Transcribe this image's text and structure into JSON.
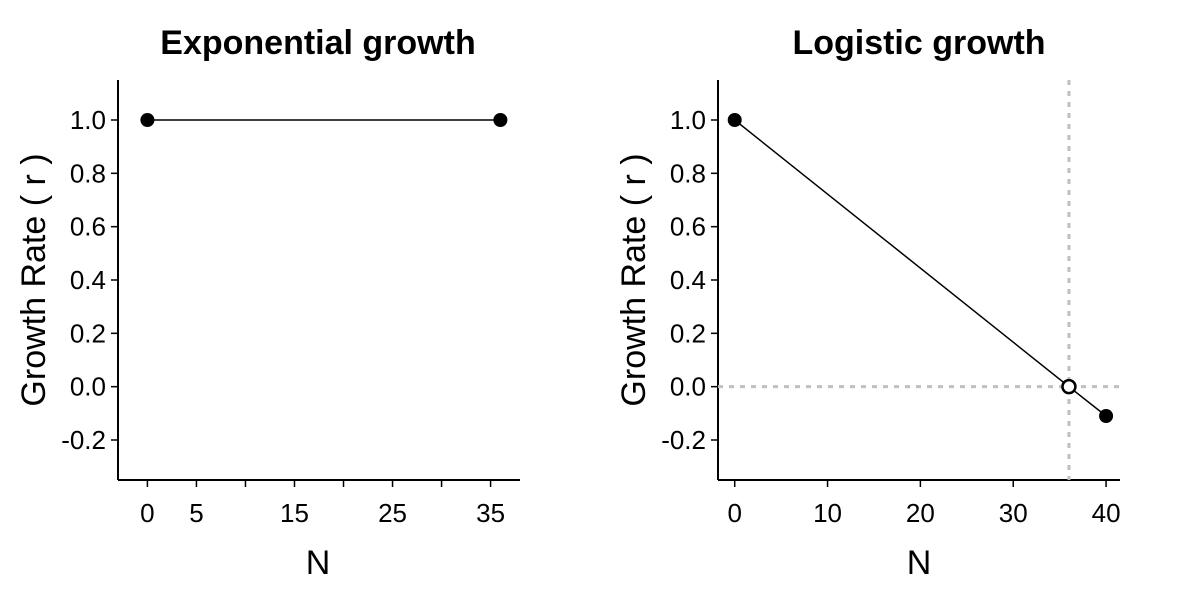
{
  "chart_data": [
    {
      "type": "line",
      "title": "Exponential growth",
      "xlabel": "N",
      "ylabel": "Growth Rate ( r )",
      "xlim": [
        -3,
        38
      ],
      "ylim": [
        -0.35,
        1.15
      ],
      "xticks": [
        0,
        5,
        15,
        25,
        35
      ],
      "xminor": [
        10,
        20,
        30
      ],
      "yticks": [
        -0.2,
        0.0,
        0.2,
        0.4,
        0.6,
        0.8,
        1.0
      ],
      "ytick_labels": [
        "-0.2",
        "0.0",
        "0.2",
        "0.4",
        "0.6",
        "0.8",
        "1.0"
      ],
      "series": [
        {
          "x": [
            0,
            36
          ],
          "y": [
            1.0,
            1.0
          ],
          "marker": "filled-circle"
        }
      ],
      "reference_lines": [],
      "grid": false
    },
    {
      "type": "line",
      "title": "Logistic growth",
      "xlabel": "N",
      "ylabel": "Growth Rate ( r )",
      "xlim": [
        -1.8,
        41.5
      ],
      "ylim": [
        -0.35,
        1.15
      ],
      "xticks": [
        0,
        10,
        20,
        30,
        40
      ],
      "xminor": [],
      "yticks": [
        -0.2,
        0.0,
        0.2,
        0.4,
        0.6,
        0.8,
        1.0
      ],
      "ytick_labels": [
        "-0.2",
        "0.0",
        "0.2",
        "0.4",
        "0.6",
        "0.8",
        "1.0"
      ],
      "series": [
        {
          "x": [
            0,
            36,
            40
          ],
          "y": [
            1.0,
            0.0,
            -0.11
          ],
          "marker": "filled-circle",
          "open_points": [
            36
          ]
        }
      ],
      "reference_lines": [
        {
          "orientation": "horizontal",
          "value": 0,
          "style": "dotted",
          "color": "#bfbfbf"
        },
        {
          "orientation": "vertical",
          "value": 36,
          "style": "dotted",
          "color": "#bfbfbf"
        }
      ],
      "grid": false
    }
  ]
}
